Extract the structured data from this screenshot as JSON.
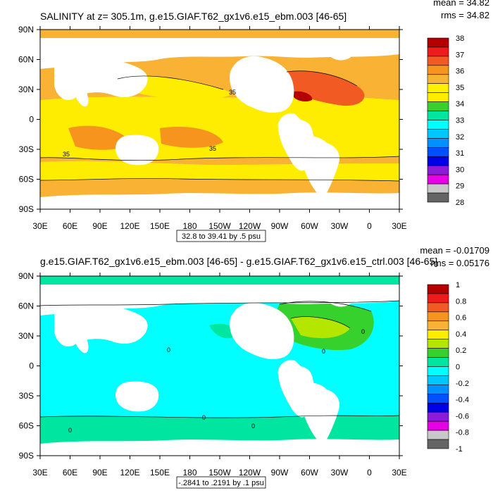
{
  "chart_data": [
    {
      "type": "heatmap",
      "title": "SALINITY at z= 305.1m, g.e15.GIAF.T62_gx1v6.e15_ebm.003 [46-65]",
      "stats": {
        "mean": "mean = 34.82",
        "rms": "rms = 34.82"
      },
      "x_ticks": [
        "30E",
        "60E",
        "90E",
        "120E",
        "150E",
        "180",
        "150W",
        "120W",
        "90W",
        "60W",
        "30W",
        "0",
        "30E"
      ],
      "y_ticks": [
        "90N",
        "60N",
        "30N",
        "0",
        "30S",
        "60S",
        "90S"
      ],
      "contour_info": "32.8 to 39.41 by .5 psu",
      "colorbar_labels": [
        "38",
        "37",
        "36",
        "35",
        "34",
        "33",
        "32",
        "31",
        "30",
        "29",
        "28"
      ],
      "colorbar_colors": [
        "#b40000",
        "#ee1b1b",
        "#f15a22",
        "#f7941d",
        "#f9b233",
        "#fff200",
        "#ffed00",
        "#36d12d",
        "#00e6a0",
        "#00ffff",
        "#00c8ff",
        "#0090ff",
        "#0050ff",
        "#0000e6",
        "#8c1ad9",
        "#e600e6",
        "#c8c8c8",
        "#646464"
      ],
      "contour_labels": [
        "35",
        "35",
        "35"
      ],
      "regions": {
        "land": "#ffffff",
        "fill_high": "#f7941d",
        "fill_highest": "#f15a22",
        "fill_mid": "#f9b233",
        "fill_low": "#ffed00",
        "fill_lower": "#36d12d",
        "fill_max": "#b40000"
      }
    },
    {
      "type": "heatmap",
      "title": "g.e15.GIAF.T62_gx1v6.e15_ebm.003 [46-65] - g.e15.GIAF.T62_gx1v6.e15_ctrl.003 [46-65]",
      "stats": {
        "mean": "mean = -0.01709",
        "rms": "rms = 0.05176"
      },
      "x_ticks": [
        "30E",
        "60E",
        "90E",
        "120E",
        "150E",
        "180",
        "150W",
        "120W",
        "90W",
        "60W",
        "30W",
        "0",
        "30E"
      ],
      "y_ticks": [
        "90N",
        "60N",
        "30N",
        "0",
        "30S",
        "60S",
        "90S"
      ],
      "contour_info": "-.2841 to .2191 by .1 psu",
      "colorbar_labels": [
        "1",
        "0.8",
        "0.6",
        "0.4",
        "0.2",
        "0",
        "-0.2",
        "-0.4",
        "-0.6",
        "-0.8",
        "-1"
      ],
      "colorbar_colors": [
        "#b40000",
        "#ee1b1b",
        "#f15a22",
        "#f7941d",
        "#f9b233",
        "#ffed00",
        "#b4e600",
        "#36d12d",
        "#00e6a0",
        "#00ffff",
        "#00c8ff",
        "#0090ff",
        "#0050ff",
        "#0000e6",
        "#8c1ad9",
        "#e600e6",
        "#c8c8c8",
        "#646464"
      ],
      "contour_labels": [
        "0",
        "0",
        "0",
        "0",
        "0",
        "0"
      ],
      "regions": {
        "land": "#ffffff",
        "fill_zero": "#00e6a0",
        "fill_pos": "#36d12d",
        "fill_pos_hi": "#b4e600",
        "fill_neg": "#00ffff"
      }
    }
  ]
}
